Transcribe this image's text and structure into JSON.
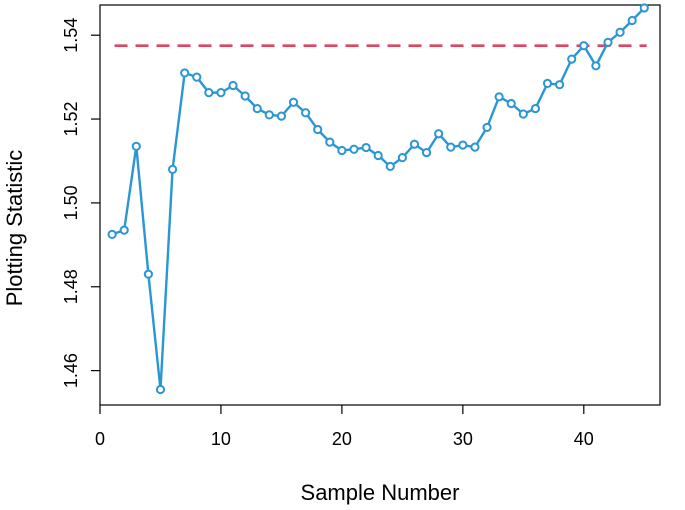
{
  "chart_data": {
    "type": "line",
    "title": "",
    "xlabel": "Sample Number",
    "ylabel": "Plotting Statistic",
    "xlim": [
      0,
      46.3
    ],
    "ylim": [
      1.4518,
      1.5472
    ],
    "x_ticks": [
      0,
      10,
      20,
      30,
      40
    ],
    "y_ticks": [
      1.46,
      1.48,
      1.5,
      1.52,
      1.54
    ],
    "x_tick_labels": [
      "0",
      "10",
      "20",
      "30",
      "40"
    ],
    "y_tick_labels": [
      "1.46",
      "1.48",
      "1.50",
      "1.52",
      "1.54"
    ],
    "grid": false,
    "series": [
      {
        "color": "#2a96d4",
        "marker": "open-circle",
        "x": [
          1,
          2,
          3,
          4,
          5,
          6,
          7,
          8,
          9,
          10,
          11,
          12,
          13,
          14,
          15,
          16,
          17,
          18,
          19,
          20,
          21,
          22,
          23,
          24,
          25,
          26,
          27,
          28,
          29,
          30,
          31,
          32,
          33,
          34,
          35,
          36,
          37,
          38,
          39,
          40,
          41,
          42,
          43,
          44,
          45
        ],
        "y": [
          1.4925,
          1.4935,
          1.5135,
          1.483,
          1.4555,
          1.508,
          1.531,
          1.53,
          1.5263,
          1.5263,
          1.528,
          1.5255,
          1.5225,
          1.521,
          1.5207,
          1.524,
          1.5215,
          1.5175,
          1.5145,
          1.5125,
          1.5128,
          1.5132,
          1.5113,
          1.5087,
          1.5108,
          1.514,
          1.512,
          1.5165,
          1.5133,
          1.5138,
          1.5133,
          1.518,
          1.5253,
          1.5237,
          1.5212,
          1.5225,
          1.5285,
          1.5282,
          1.5343,
          1.5375,
          1.5327,
          1.5383,
          1.5407,
          1.5435,
          1.5465
        ]
      }
    ],
    "reference_lines": [
      {
        "type": "horizontal",
        "y": 1.5375,
        "x_range": [
          1.2,
          45.2
        ],
        "color": "#e0455f",
        "style": "dashed"
      }
    ]
  }
}
